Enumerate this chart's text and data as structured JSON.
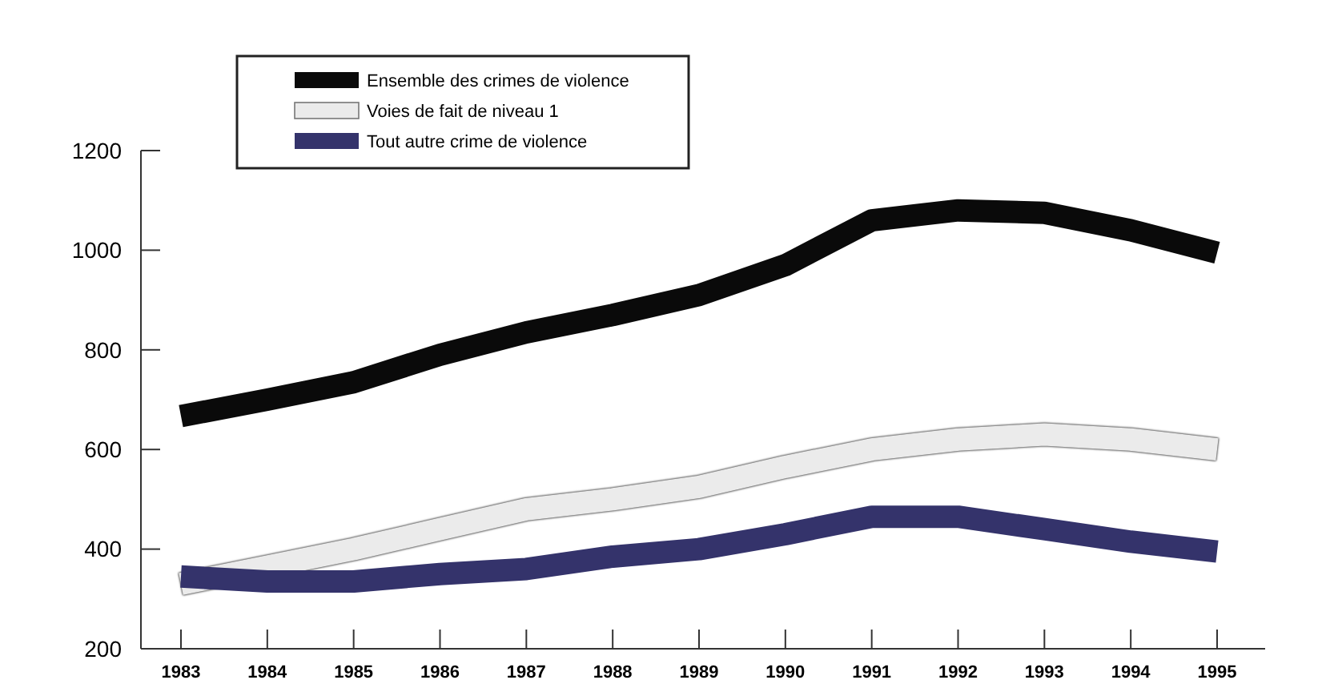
{
  "chart_data": {
    "type": "line",
    "categories": [
      "1983",
      "1984",
      "1985",
      "1986",
      "1987",
      "1988",
      "1989",
      "1990",
      "1991",
      "1992",
      "1993",
      "1994",
      "1995"
    ],
    "ylim": [
      200,
      1200
    ],
    "yticks": [
      200,
      400,
      600,
      800,
      1000,
      1200
    ],
    "legend": "top left",
    "grid": false,
    "marker": "none",
    "line_style": "solid",
    "series": [
      {
        "name": "Ensemble des crimes de violence",
        "color": "#0a0a0a",
        "values": [
          667,
          700,
          735,
          790,
          835,
          870,
          910,
          970,
          1060,
          1080,
          1075,
          1040,
          995
        ]
      },
      {
        "name": "Voies de fait de niveau 1",
        "color": "#ebebeb",
        "values": [
          330,
          365,
          400,
          440,
          480,
          500,
          525,
          565,
          600,
          620,
          630,
          620,
          600
        ]
      },
      {
        "name": "Tout autre crime de violence",
        "color": "#34336b",
        "values": [
          345,
          335,
          335,
          350,
          360,
          385,
          400,
          430,
          465,
          465,
          440,
          415,
          395
        ]
      }
    ]
  }
}
